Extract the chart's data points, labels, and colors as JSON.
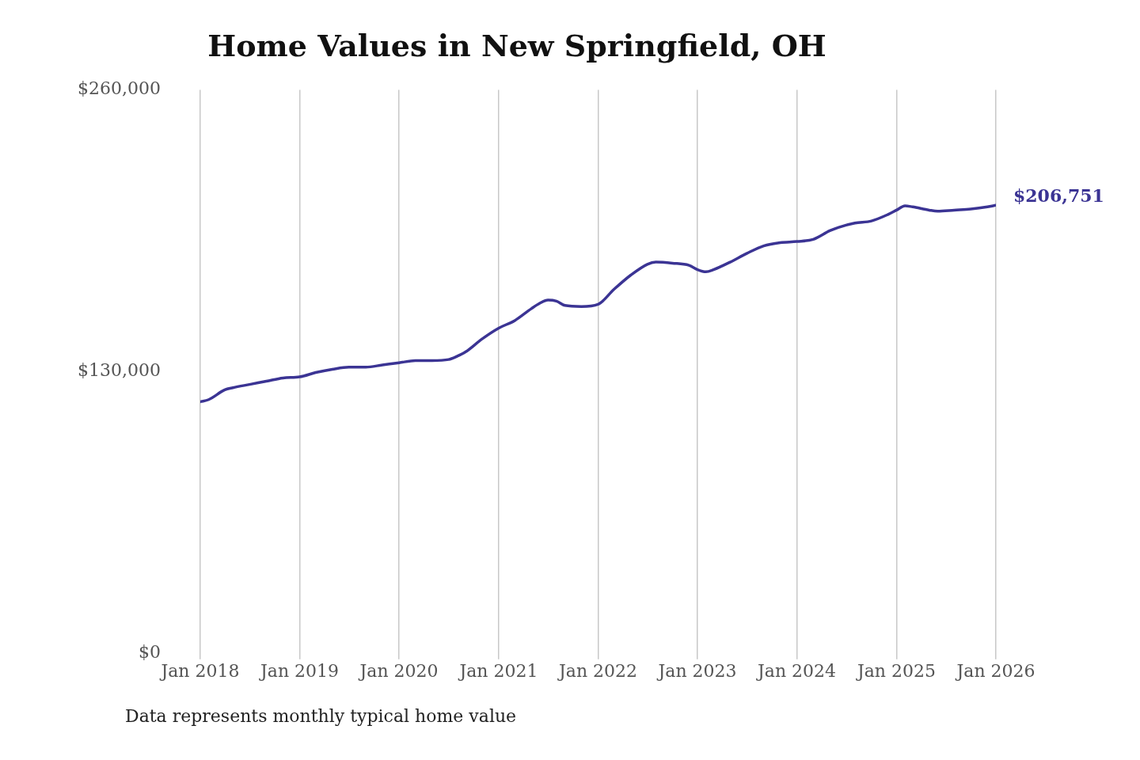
{
  "chart_data": {
    "type": "line",
    "title": "Home Values in New Springfield, OH",
    "annotations": [
      "Data represents monthly typical home value"
    ],
    "x": [
      "2018-01",
      "2018-02",
      "2018-04",
      "2018-05",
      "2018-07",
      "2018-09",
      "2018-11",
      "2019-01",
      "2019-03",
      "2019-05",
      "2019-07",
      "2019-09",
      "2019-11",
      "2020-01",
      "2020-03",
      "2020-05",
      "2020-07",
      "2020-08",
      "2020-09",
      "2020-11",
      "2021-01",
      "2021-03",
      "2021-05",
      "2021-06",
      "2021-07",
      "2021-08",
      "2021-09",
      "2021-11",
      "2022-01",
      "2022-03",
      "2022-05",
      "2022-07",
      "2022-08",
      "2022-10",
      "2022-12",
      "2023-01",
      "2023-02",
      "2023-03",
      "2023-05",
      "2023-07",
      "2023-09",
      "2023-11",
      "2024-01",
      "2024-03",
      "2024-05",
      "2024-06",
      "2024-08",
      "2024-10",
      "2024-12",
      "2025-01",
      "2025-02",
      "2025-03",
      "2025-05",
      "2025-06",
      "2025-08",
      "2025-10",
      "2025-12",
      "2026-01"
    ],
    "series": [
      {
        "color": "#3b3494",
        "values": [
          116000,
          117000,
          121500,
          122500,
          124000,
          125500,
          127000,
          127500,
          129500,
          131000,
          132000,
          132000,
          133000,
          134000,
          135000,
          135000,
          135500,
          137000,
          139000,
          145000,
          150000,
          153500,
          159000,
          161500,
          163000,
          162500,
          160500,
          160000,
          161000,
          168000,
          174500,
          179500,
          180500,
          180000,
          179000,
          177000,
          176000,
          177000,
          180500,
          184500,
          188000,
          189500,
          190000,
          191000,
          195000,
          196500,
          198500,
          199500,
          202500,
          204500,
          206500,
          206000,
          204500,
          204000,
          204500,
          205000,
          206000,
          206751
        ],
        "value_labels": [
          null,
          null,
          null,
          null,
          null,
          null,
          null,
          null,
          null,
          null,
          null,
          null,
          null,
          null,
          null,
          null,
          null,
          null,
          null,
          null,
          null,
          null,
          null,
          null,
          null,
          null,
          null,
          null,
          null,
          null,
          null,
          null,
          null,
          null,
          null,
          null,
          null,
          null,
          null,
          null,
          null,
          null,
          null,
          null,
          null,
          null,
          null,
          null,
          null,
          null,
          null,
          null,
          null,
          null,
          null,
          null,
          null,
          "$206,751"
        ]
      }
    ],
    "xlim": [
      "2018-01",
      "2026-01"
    ],
    "xticks": [
      {
        "value": "2018-01",
        "label": "Jan 2018"
      },
      {
        "value": "2019-01",
        "label": "Jan 2019"
      },
      {
        "value": "2020-01",
        "label": "Jan 2020"
      },
      {
        "value": "2021-01",
        "label": "Jan 2021"
      },
      {
        "value": "2022-01",
        "label": "Jan 2022"
      },
      {
        "value": "2023-01",
        "label": "Jan 2023"
      },
      {
        "value": "2024-01",
        "label": "Jan 2024"
      },
      {
        "value": "2025-01",
        "label": "Jan 2025"
      },
      {
        "value": "2026-01",
        "label": "Jan 2026"
      }
    ],
    "ylim": [
      0,
      260000
    ],
    "yticks": [
      {
        "value": 0,
        "label": "$0"
      },
      {
        "value": 130000,
        "label": "$130,000"
      },
      {
        "value": 260000,
        "label": "$260,000"
      }
    ],
    "grid": "x",
    "legend": false,
    "marker": "none",
    "line_style": "solid"
  }
}
